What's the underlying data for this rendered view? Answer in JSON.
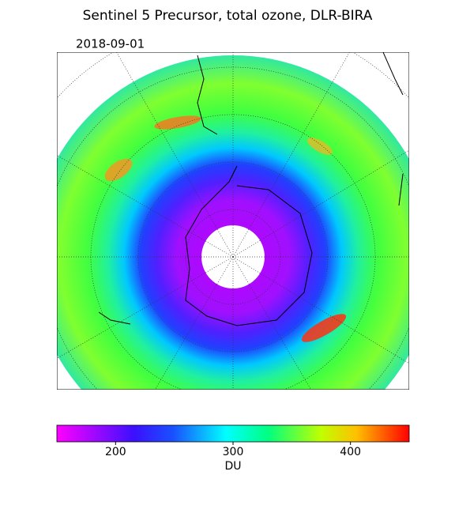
{
  "title": "Sentinel 5 Precursor, total ozone, DLR-BIRA",
  "date": "2018-09-01",
  "colorbar": {
    "label": "DU",
    "lim": [
      150,
      450
    ],
    "ticks": [
      200,
      300,
      400
    ]
  }
}
